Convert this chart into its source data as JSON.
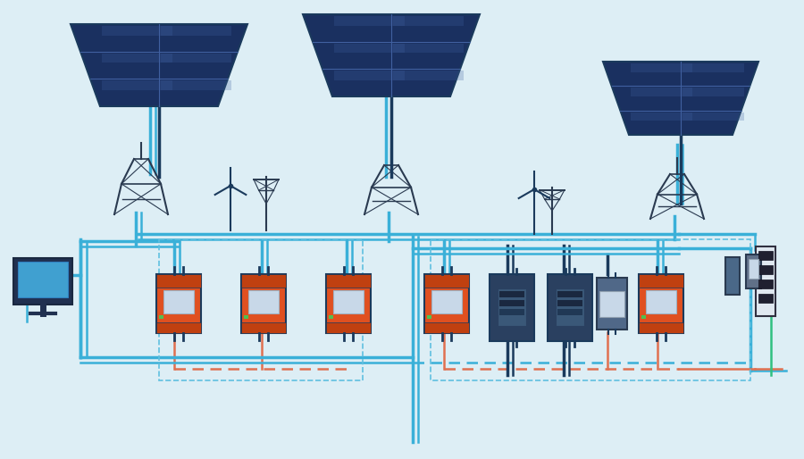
{
  "bg_color": "#ddeef5",
  "dark_blue": "#1a3a5c",
  "mid_blue": "#2a6090",
  "light_blue": "#4ab0d0",
  "cyan_line": "#30c0e0",
  "orange_device": "#e05020",
  "orange_line": "#e06030",
  "dark_device": "#2a4060",
  "panel_blue": "#1a3060",
  "panel_cell": "#1e3870",
  "panel_light": "#4060a0",
  "screen_blue": "#40a0d0",
  "wire_blue": "#3ab0d8",
  "wire_dark": "#1a3050",
  "wire_orange": "#e07050",
  "dashed_blue": "#60c0e0",
  "dashed_orange": "#e08060",
  "gray_device": "#506080",
  "green_line": "#30c080",
  "tower_color": "#2a3a50"
}
